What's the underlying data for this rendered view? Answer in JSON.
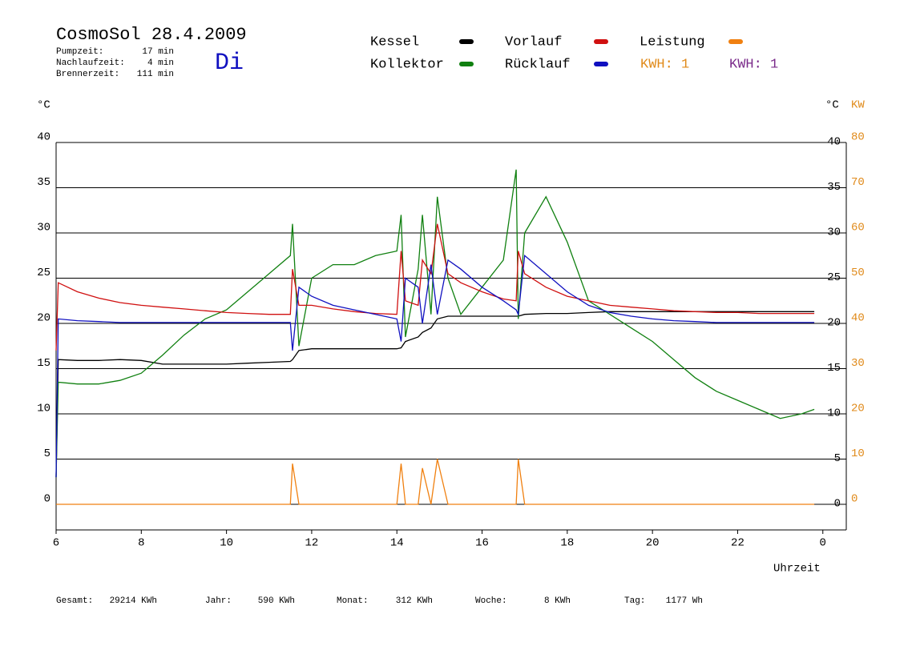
{
  "chart_data": {
    "type": "line",
    "title": "CosmoSol 28.4.2009",
    "day": "Di",
    "info": [
      [
        "Pumpzeit:",
        "17 min"
      ],
      [
        "Nachlaufzeit:",
        "4 min"
      ],
      [
        "Brennerzeit:",
        "111 min"
      ]
    ],
    "kwh_labels": [
      {
        "text": "KWH: 1",
        "color": "#e08a1a"
      },
      {
        "text": "KWH: 1",
        "color": "#7a2a8a"
      }
    ],
    "y_label": "°C",
    "y2_label_left": "°C",
    "y2_label": "KW",
    "x_label": "Uhrzeit",
    "stats": [
      [
        "Gesamt:",
        "29214 KWh"
      ],
      [
        "Jahr:",
        "590 KWh"
      ],
      [
        "Monat:",
        "312 KWh"
      ],
      [
        "Woche:",
        "8 KWh"
      ],
      [
        "Tag:",
        "1177 Wh"
      ]
    ],
    "x": [
      6,
      6.05,
      6.5,
      7,
      7.5,
      8,
      8.5,
      9,
      9.5,
      10,
      10.5,
      11,
      11.5,
      11.55,
      11.7,
      12,
      12.5,
      13,
      13.5,
      14,
      14.1,
      14.2,
      14.5,
      14.6,
      14.8,
      14.95,
      15.2,
      15.5,
      16,
      16.5,
      16.8,
      16.85,
      17,
      17.5,
      18,
      18.5,
      19,
      19.5,
      20,
      20.5,
      21,
      21.5,
      22,
      22.5,
      23,
      23.5,
      23.8
    ],
    "series": [
      {
        "name": "Kessel",
        "color": "#000000",
        "values": [
          3,
          16,
          15.9,
          15.9,
          16,
          15.9,
          15.5,
          15.5,
          15.5,
          15.5,
          15.6,
          15.7,
          15.8,
          16,
          17,
          17.2,
          17.2,
          17.2,
          17.2,
          17.2,
          17.3,
          18,
          18.5,
          19,
          19.5,
          20.5,
          20.8,
          20.8,
          20.8,
          20.8,
          20.8,
          20.8,
          21,
          21.1,
          21.1,
          21.2,
          21.3,
          21.3,
          21.3,
          21.3,
          21.3,
          21.3,
          21.3,
          21.3,
          21.3,
          21.3,
          21.3
        ]
      },
      {
        "name": "Kollektor",
        "color": "#108010",
        "values": [
          3,
          13.5,
          13.3,
          13.3,
          13.7,
          14.5,
          16.5,
          18.7,
          20.5,
          21.5,
          23.5,
          25.5,
          27.5,
          31,
          17.5,
          25,
          26.5,
          26.5,
          27.5,
          28,
          32,
          18.5,
          26,
          32,
          21,
          34,
          25,
          21,
          24,
          27,
          37,
          20.5,
          30,
          34,
          29,
          22.5,
          21,
          19.5,
          18,
          16,
          14,
          12.5,
          11.5,
          10.5,
          9.5,
          10,
          10.5
        ]
      },
      {
        "name": "Vorlauf",
        "color": "#d01010",
        "values": [
          17,
          24.5,
          23.5,
          22.8,
          22.3,
          22,
          21.8,
          21.6,
          21.4,
          21.2,
          21.1,
          21,
          21,
          26,
          22,
          22,
          21.6,
          21.3,
          21.1,
          21,
          28,
          22.5,
          22,
          27,
          25.5,
          31,
          25.5,
          24.5,
          23.5,
          22.7,
          22.5,
          28,
          25.5,
          24,
          23,
          22.5,
          22,
          21.8,
          21.6,
          21.4,
          21.3,
          21.2,
          21.2,
          21.1,
          21.1,
          21.1,
          21.1
        ]
      },
      {
        "name": "Rücklauf",
        "color": "#1010c0",
        "values": [
          3,
          20.5,
          20.3,
          20.2,
          20.1,
          20.1,
          20.1,
          20.1,
          20.1,
          20.1,
          20.1,
          20.1,
          20.1,
          17,
          24,
          23,
          22,
          21.5,
          21,
          20.5,
          18,
          25,
          24,
          20,
          26.5,
          21,
          27,
          26,
          24,
          22.5,
          21.5,
          21,
          27.5,
          25.5,
          23.5,
          22,
          21.2,
          20.8,
          20.5,
          20.3,
          20.2,
          20.1,
          20.1,
          20.1,
          20.1,
          20.1,
          20.1
        ]
      },
      {
        "name": "Leistung",
        "color": "#f08010",
        "axis": "y2",
        "values": [
          0,
          0,
          0,
          0,
          0,
          0,
          0,
          0,
          0,
          0,
          0,
          0,
          0,
          9,
          0,
          0,
          0,
          0,
          0,
          0,
          9,
          0,
          0,
          8,
          0,
          10,
          0,
          0,
          0,
          0,
          0,
          10,
          0,
          0,
          0,
          0,
          0,
          0,
          0,
          0,
          0,
          0,
          0,
          0,
          0,
          0,
          0
        ]
      }
    ],
    "xlim": [
      6,
      24.55
    ],
    "xticks": [
      6,
      8,
      10,
      12,
      14,
      16,
      18,
      20,
      22,
      {
        "value": 24,
        "label": "0"
      }
    ],
    "ylim": [
      -2.83,
      40
    ],
    "yticks": [
      0,
      5,
      10,
      15,
      20,
      25,
      30,
      35,
      40
    ],
    "y2lim": [
      -5.66,
      80
    ],
    "y2ticks": [
      0,
      10,
      20,
      30,
      40,
      50,
      60,
      70,
      80
    ],
    "y2_color": "#e08a1a",
    "grid": true
  }
}
